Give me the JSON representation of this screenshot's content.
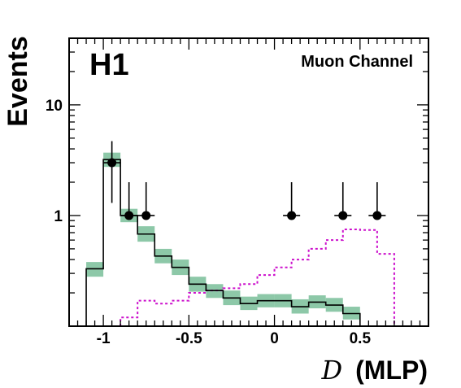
{
  "chart_data": {
    "type": "histogram",
    "experiment_label": "H1",
    "channel_label": "Muon Channel",
    "xlabel_symbol": "D",
    "xlabel_text": "(MLP)",
    "ylabel": "Events",
    "xlim": [
      -1.2,
      0.9
    ],
    "ylim": [
      0.1,
      40
    ],
    "yscale": "log",
    "x_ticks": [
      {
        "value": -1,
        "label": "-1"
      },
      {
        "value": -0.5,
        "label": "-0.5"
      },
      {
        "value": 0,
        "label": "0"
      },
      {
        "value": 0.5,
        "label": "0.5"
      }
    ],
    "y_ticks": [
      {
        "value": 1,
        "label": "1"
      },
      {
        "value": 10,
        "label": "10"
      }
    ],
    "bin_edges": [
      -1.1,
      -1.0,
      -0.9,
      -0.8,
      -0.7,
      -0.6,
      -0.5,
      -0.4,
      -0.3,
      -0.2,
      -0.1,
      0.0,
      0.1,
      0.2,
      0.3,
      0.4,
      0.5,
      0.6,
      0.7,
      0.8
    ],
    "background_mc": {
      "values": [
        0.33,
        3.2,
        1.0,
        0.68,
        0.43,
        0.34,
        0.24,
        0.21,
        0.18,
        0.16,
        0.17,
        0.17,
        0.15,
        0.165,
        0.155,
        0.13,
        0.1,
        0.1,
        0.1
      ],
      "band_lo": [
        0.28,
        2.75,
        0.87,
        0.58,
        0.37,
        0.29,
        0.205,
        0.18,
        0.155,
        0.14,
        0.148,
        0.148,
        0.13,
        0.145,
        0.135,
        0.115,
        0.1,
        0.1,
        0.1
      ],
      "band_hi": [
        0.38,
        3.7,
        1.15,
        0.8,
        0.5,
        0.4,
        0.28,
        0.24,
        0.21,
        0.185,
        0.195,
        0.195,
        0.175,
        0.19,
        0.18,
        0.15,
        0.1,
        0.1,
        0.1
      ],
      "line_color": "#000000",
      "band_color": "#8dc8a8"
    },
    "signal_mc": {
      "values": [
        0.1,
        0.1,
        0.12,
        0.17,
        0.16,
        0.17,
        0.2,
        0.21,
        0.22,
        0.24,
        0.29,
        0.34,
        0.4,
        0.5,
        0.6,
        0.75,
        0.74,
        0.45,
        0.1
      ],
      "color": "#cc11cc"
    },
    "data_points": {
      "x": [
        -0.95,
        -0.85,
        -0.75,
        0.1,
        0.4,
        0.6
      ],
      "y": [
        3,
        1,
        1,
        1,
        1,
        1
      ],
      "yerr_lo": [
        1.3,
        0.95,
        0.95,
        0.95,
        0.95,
        0.95
      ],
      "yerr_hi": [
        4.7,
        2.0,
        2.0,
        2.0,
        2.0,
        2.0
      ],
      "xerr": 0.05,
      "color": "#000000"
    },
    "grid": false,
    "legend": "none"
  }
}
